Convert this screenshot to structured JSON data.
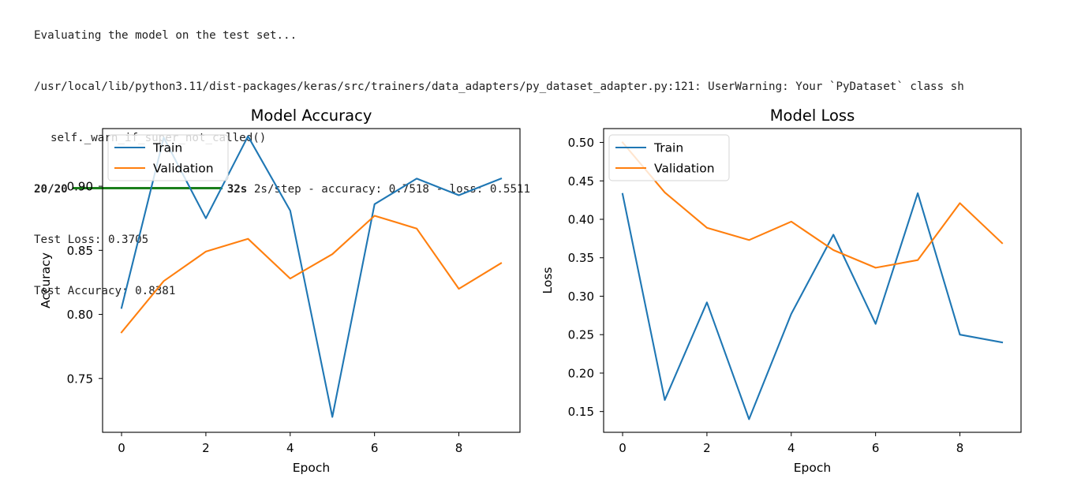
{
  "console": {
    "line_evaluating": "Evaluating the model on the test set...",
    "line_warning": "/usr/local/lib/python3.11/dist-packages/keras/src/trainers/data_adapters/py_dataset_adapter.py:121: UserWarning: Your `PyDataset` class sh",
    "line_warn_call": "self._warn_if_super_not_called()",
    "progress_step": "20/20",
    "progress_fraction": 1.0,
    "progress_time": "32s",
    "progress_rest": "2s/step - accuracy: 0.7518 - loss: 0.5511",
    "test_loss": "Test Loss: 0.3705",
    "test_accuracy": "Test Accuracy: 0.8381"
  },
  "colors": {
    "train": "#1f77b4",
    "validation": "#ff7f0e",
    "progress": "#1a7f1a"
  },
  "chart_data": [
    {
      "type": "line",
      "title": "Model Accuracy",
      "xlabel": "Epoch",
      "ylabel": "Accuracy",
      "xlim": [
        -0.45,
        9.45
      ],
      "ylim": [
        0.708,
        0.945
      ],
      "xticks": [
        0,
        2,
        4,
        6,
        8
      ],
      "xtick_labels": [
        "0",
        "2",
        "4",
        "6",
        "8"
      ],
      "yticks": [
        0.75,
        0.8,
        0.85,
        0.9
      ],
      "ytick_labels": [
        "0.75",
        "0.80",
        "0.85",
        "0.90"
      ],
      "legend_loc": "upper left",
      "grid": false,
      "x": [
        0,
        1,
        2,
        3,
        4,
        5,
        6,
        7,
        8,
        9
      ],
      "series": [
        {
          "name": "Train",
          "values": [
            0.805,
            0.938,
            0.875,
            0.939,
            0.881,
            0.72,
            0.886,
            0.906,
            0.893,
            0.906
          ]
        },
        {
          "name": "Validation",
          "values": [
            0.786,
            0.826,
            0.849,
            0.859,
            0.828,
            0.847,
            0.877,
            0.867,
            0.82,
            0.84
          ]
        }
      ]
    },
    {
      "type": "line",
      "title": "Model Loss",
      "xlabel": "Epoch",
      "ylabel": "Loss",
      "xlim": [
        -0.45,
        9.45
      ],
      "ylim": [
        0.123,
        0.518
      ],
      "xticks": [
        0,
        2,
        4,
        6,
        8
      ],
      "xtick_labels": [
        "0",
        "2",
        "4",
        "6",
        "8"
      ],
      "yticks": [
        0.15,
        0.2,
        0.25,
        0.3,
        0.35,
        0.4,
        0.45,
        0.5
      ],
      "ytick_labels": [
        "0.15",
        "0.20",
        "0.25",
        "0.30",
        "0.35",
        "0.40",
        "0.45",
        "0.50"
      ],
      "legend_loc": "upper left",
      "grid": false,
      "x": [
        0,
        1,
        2,
        3,
        4,
        5,
        6,
        7,
        8,
        9
      ],
      "series": [
        {
          "name": "Train",
          "values": [
            0.433,
            0.165,
            0.292,
            0.14,
            0.277,
            0.38,
            0.264,
            0.434,
            0.25,
            0.24
          ]
        },
        {
          "name": "Validation",
          "values": [
            0.5,
            0.435,
            0.389,
            0.373,
            0.397,
            0.36,
            0.337,
            0.347,
            0.421,
            0.369
          ]
        }
      ]
    }
  ]
}
